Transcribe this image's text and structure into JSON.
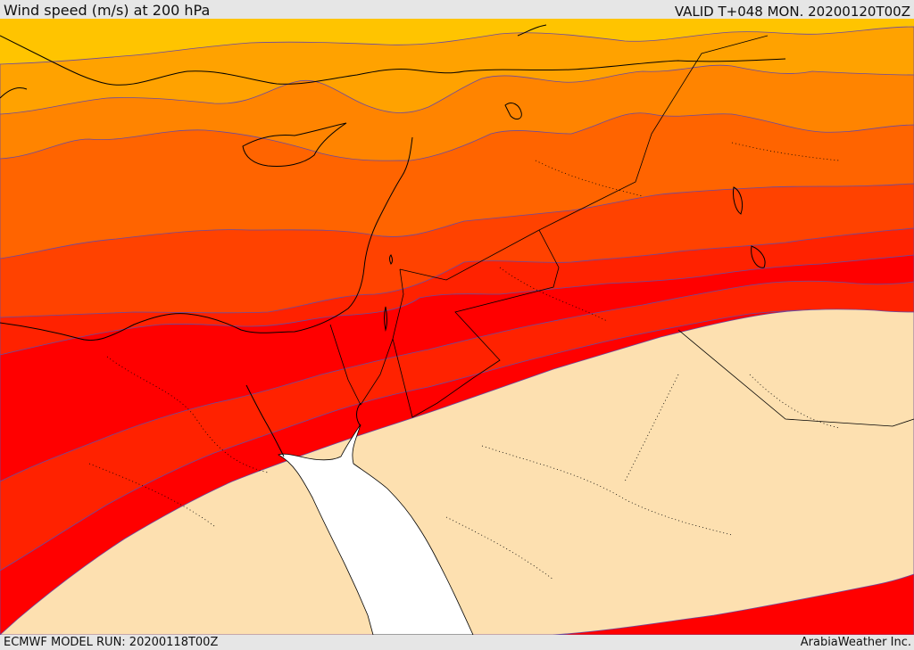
{
  "header": {
    "title": "Wind speed (m/s) at 200 hPa",
    "valid": "VALID T+048 MON. 20200120T00Z"
  },
  "footer": {
    "model_run": "ECMWF MODEL RUN: 20200118T00Z",
    "credit": "ArabiaWeather Inc."
  },
  "colors": {
    "band_1": "#ffc400",
    "band_2": "#ffa200",
    "band_3": "#ff8400",
    "band_4": "#ff6400",
    "band_5": "#ff4200",
    "band_6": "#ff2200",
    "band_7": "#ff0000",
    "land_calm": "#fde0b0",
    "sea_white": "#ffffff",
    "contour_line": "#6a4aa0",
    "coast_line": "#000000"
  }
}
